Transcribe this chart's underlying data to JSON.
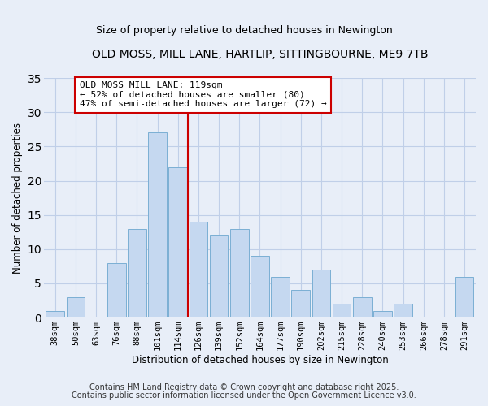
{
  "title": "OLD MOSS, MILL LANE, HARTLIP, SITTINGBOURNE, ME9 7TB",
  "subtitle": "Size of property relative to detached houses in Newington",
  "xlabel": "Distribution of detached houses by size in Newington",
  "ylabel": "Number of detached properties",
  "categories": [
    "38sqm",
    "50sqm",
    "63sqm",
    "76sqm",
    "88sqm",
    "101sqm",
    "114sqm",
    "126sqm",
    "139sqm",
    "152sqm",
    "164sqm",
    "177sqm",
    "190sqm",
    "202sqm",
    "215sqm",
    "228sqm",
    "240sqm",
    "253sqm",
    "266sqm",
    "278sqm",
    "291sqm"
  ],
  "values": [
    1,
    3,
    0,
    8,
    13,
    27,
    22,
    14,
    12,
    13,
    9,
    6,
    4,
    7,
    2,
    3,
    1,
    2,
    0,
    0,
    6
  ],
  "bar_color": "#c5d8f0",
  "bar_edge_color": "#7bafd4",
  "grid_color": "#c0cfe8",
  "background_color": "#e8eef8",
  "vline_color": "#cc0000",
  "vline_x_index": 6,
  "annotation_line1": "OLD MOSS MILL LANE: 119sqm",
  "annotation_line2": "← 52% of detached houses are smaller (80)",
  "annotation_line3": "47% of semi-detached houses are larger (72) →",
  "annotation_box_facecolor": "#ffffff",
  "annotation_box_edgecolor": "#cc0000",
  "ylim": [
    0,
    35
  ],
  "yticks": [
    0,
    5,
    10,
    15,
    20,
    25,
    30,
    35
  ],
  "footer1": "Contains HM Land Registry data © Crown copyright and database right 2025.",
  "footer2": "Contains public sector information licensed under the Open Government Licence v3.0.",
  "title_fontsize": 10,
  "subtitle_fontsize": 9,
  "axis_label_fontsize": 8.5,
  "tick_fontsize": 7.5,
  "annotation_fontsize": 8,
  "footer_fontsize": 7
}
